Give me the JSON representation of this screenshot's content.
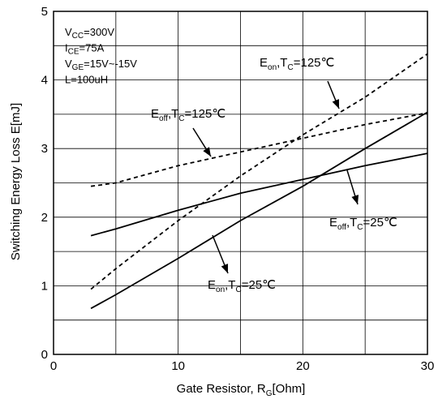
{
  "chart_data": {
    "type": "line",
    "title": "",
    "xlabel": {
      "main": "Gate Resistor, R",
      "sub": "G",
      "unit": "[Ohm]"
    },
    "ylabel": "Switching Energy Loss E[mJ]",
    "xlim": [
      0,
      30
    ],
    "ylim": [
      0,
      5
    ],
    "x_ticks": [
      0,
      10,
      20,
      30
    ],
    "y_ticks": [
      0,
      1,
      2,
      3,
      4,
      5
    ],
    "grid": true,
    "conditions": [
      {
        "main": "V",
        "sub": "CC",
        "rest": "=300V"
      },
      {
        "main": "I",
        "sub": "CE",
        "rest": "=75A"
      },
      {
        "main": "V",
        "sub": "GE",
        "rest": "=15V~-15V"
      },
      {
        "main": "L=100uH",
        "sub": "",
        "rest": ""
      }
    ],
    "series": [
      {
        "key": "eon125",
        "label": {
          "p1": "E",
          "s1": "on",
          "p2": ",T",
          "s2": "C",
          "p3": "=125℃"
        },
        "dash": true,
        "x": [
          3,
          5,
          10,
          15,
          20,
          25,
          30
        ],
        "y": [
          0.95,
          1.25,
          1.95,
          2.6,
          3.2,
          3.75,
          4.38
        ]
      },
      {
        "key": "eoff125",
        "label": {
          "p1": "E",
          "s1": "off",
          "p2": ",T",
          "s2": "C",
          "p3": "=125℃"
        },
        "dash": true,
        "x": [
          3,
          5,
          10,
          15,
          20,
          25,
          30
        ],
        "y": [
          2.45,
          2.5,
          2.75,
          2.95,
          3.15,
          3.35,
          3.52
        ]
      },
      {
        "key": "eon25",
        "label": {
          "p1": "E",
          "s1": "on",
          "p2": ",T",
          "s2": "C",
          "p3": "=25℃"
        },
        "dash": false,
        "x": [
          3,
          5,
          10,
          15,
          20,
          25,
          30
        ],
        "y": [
          0.67,
          0.87,
          1.4,
          1.95,
          2.45,
          3.0,
          3.53
        ]
      },
      {
        "key": "eoff25",
        "label": {
          "p1": "E",
          "s1": "off",
          "p2": ",T",
          "s2": "C",
          "p3": "=25℃"
        },
        "dash": false,
        "x": [
          3,
          5,
          10,
          15,
          20,
          25,
          30
        ],
        "y": [
          1.73,
          1.83,
          2.1,
          2.35,
          2.55,
          2.75,
          2.93
        ]
      }
    ]
  }
}
